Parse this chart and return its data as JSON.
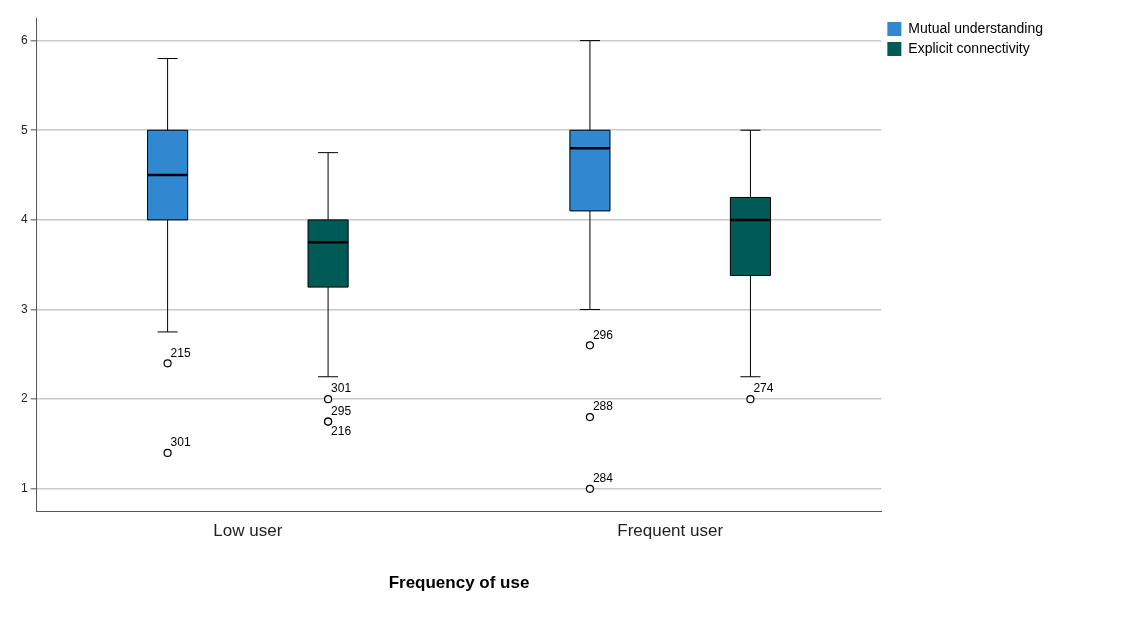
{
  "chart_data": {
    "type": "box",
    "xlabel": "Frequency of use",
    "categories": [
      "Low user",
      "Frequent user"
    ],
    "series": [
      {
        "name": "Mutual understanding",
        "color": "#3089d0",
        "boxes": [
          {
            "low": 2.75,
            "q1": 4,
            "median": 4.5,
            "q3": 5,
            "high": 5.8,
            "outliers": [
              2.4,
              1.4
            ]
          },
          {
            "low": 3,
            "q1": 4.1,
            "median": 4.8,
            "q3": 5,
            "high": 6,
            "outliers": [
              2.6,
              1.8,
              1
            ]
          }
        ]
      },
      {
        "name": "Explicit connectivity",
        "color": "#005a55",
        "boxes": [
          {
            "low": 2.25,
            "q1": 3.25,
            "median": 3.75,
            "q3": 4,
            "high": 4.75,
            "outliers": [
              2,
              1.75,
              1.75
            ]
          },
          {
            "low": 2.25,
            "q1": 3.38,
            "median": 4,
            "q3": 4.25,
            "high": 5,
            "outliers": [
              2
            ]
          }
        ]
      }
    ],
    "ylim": [
      0.75,
      6.25
    ],
    "yticks": [
      1,
      2,
      3,
      4,
      5,
      6
    ],
    "grid": "y",
    "legend": "top right",
    "annotations": [
      "215",
      "301",
      "296",
      "288",
      "284",
      "301",
      "295",
      "216",
      "274"
    ]
  }
}
